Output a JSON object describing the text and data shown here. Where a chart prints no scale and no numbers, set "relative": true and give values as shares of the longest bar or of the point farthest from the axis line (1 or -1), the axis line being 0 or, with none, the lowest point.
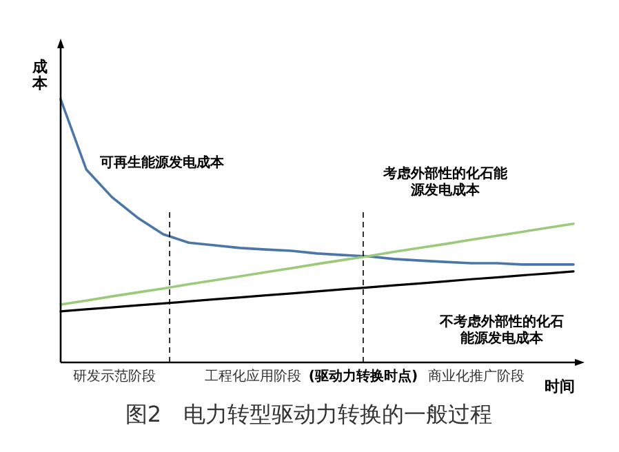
{
  "chart_data": {
    "type": "line",
    "relative": true,
    "title": "图2　电力转型驱动力转换的一般过程",
    "xlabel": "时间",
    "ylabel": "成本",
    "categories": [
      null,
      null,
      null,
      null,
      null,
      null,
      null,
      null,
      null,
      null,
      null,
      null,
      null,
      null,
      null,
      null,
      null,
      null,
      null,
      null,
      null
    ],
    "series": [
      {
        "name": "可再生能源发电成本",
        "color": "#4a77a8",
        "values": [
          1.0,
          0.733,
          0.628,
          0.55,
          0.487,
          0.455,
          0.445,
          0.435,
          0.429,
          0.424,
          0.414,
          0.408,
          0.403,
          0.393,
          0.387,
          0.382,
          0.377,
          0.377,
          0.372,
          0.372,
          0.372
        ]
      },
      {
        "name": "考虑外部性的化石能源发电成本",
        "color": "#9cc97a",
        "values": [
          0.22,
          0.235,
          0.251,
          0.266,
          0.281,
          0.297,
          0.312,
          0.327,
          0.343,
          0.358,
          0.374,
          0.389,
          0.404,
          0.42,
          0.435,
          0.45,
          0.466,
          0.481,
          0.496,
          0.512,
          0.527
        ]
      },
      {
        "name": "不考虑外部性的化石能源发电成本",
        "color": "#000000",
        "values": [
          0.194,
          0.202,
          0.209,
          0.217,
          0.224,
          0.232,
          0.24,
          0.247,
          0.255,
          0.262,
          0.27,
          0.278,
          0.285,
          0.293,
          0.3,
          0.308,
          0.316,
          0.323,
          0.331,
          0.338,
          0.346
        ]
      }
    ],
    "annotations": [
      "研发示范阶段",
      "工程化应用阶段",
      "(驱动力转换时点)",
      "商业化推广阶段"
    ],
    "grid": false,
    "marker": "none",
    "line_style": "solid"
  }
}
